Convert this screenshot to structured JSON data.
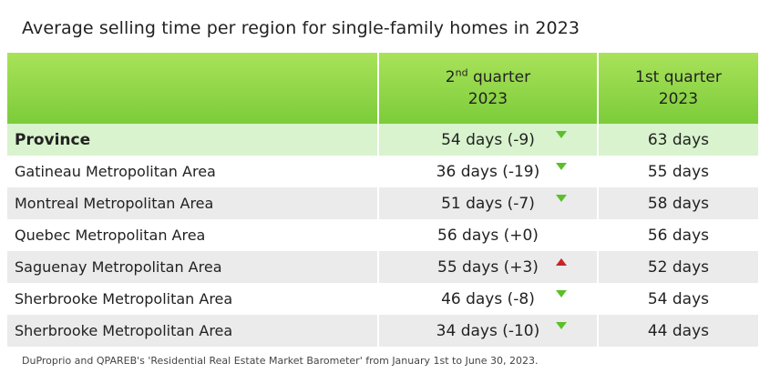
{
  "title": "Average selling time per region for single-family homes in 2023",
  "columns": {
    "q2_prefix": "2",
    "q2_sup": "nd",
    "q2_rest": " quarter",
    "q2_year": "2023",
    "q1_line1": "1st quarter",
    "q1_year": "2023"
  },
  "rows": [
    {
      "region": "Province",
      "q2": "54 days (-9)",
      "q1": "63 days",
      "trend": "down"
    },
    {
      "region": "Gatineau Metropolitan Area",
      "q2": "36 days (-19)",
      "q1": "55 days",
      "trend": "down"
    },
    {
      "region": "Montreal Metropolitan Area",
      "q2": "51 days (-7)",
      "q1": "58 days",
      "trend": "down"
    },
    {
      "region": "Quebec Metropolitan Area",
      "q2": "56 days (+0)",
      "q1": "56 days",
      "trend": "none"
    },
    {
      "region": "Saguenay Metropolitan Area",
      "q2": "55 days (+3)",
      "q1": "52 days",
      "trend": "up"
    },
    {
      "region": "Sherbrooke Metropolitan Area",
      "q2": "46 days (-8)",
      "q1": "54 days",
      "trend": "down"
    },
    {
      "region": "Sherbrooke Metropolitan Area",
      "q2": "34 days (-10)",
      "q1": "44 days",
      "trend": "down"
    }
  ],
  "source": "DuProprio and QPAREB's 'Residential Real Estate Market Barometer' from January 1st to June 30, 2023.",
  "colors": {
    "header_green": "#7ccc3a",
    "province_row": "#d8f3cd",
    "down_arrow": "#5cbf2a",
    "up_arrow": "#cc2222"
  },
  "chart_data": {
    "type": "table",
    "title": "Average selling time per region for single-family homes in 2023",
    "columns": [
      "",
      "2nd quarter 2023",
      "1st quarter 2023"
    ],
    "rows": [
      [
        "Province",
        "54 days (-9)",
        "63 days"
      ],
      [
        "Gatineau Metropolitan Area",
        "36 days (-19)",
        "55 days"
      ],
      [
        "Montreal Metropolitan Area",
        "51 days (-7)",
        "58 days"
      ],
      [
        "Quebec Metropolitan Area",
        "56 days (+0)",
        "56 days"
      ],
      [
        "Saguenay Metropolitan Area",
        "55 days (+3)",
        "52 days"
      ],
      [
        "Sherbrooke Metropolitan Area",
        "46 days (-8)",
        "54 days"
      ],
      [
        "Sherbrooke Metropolitan Area",
        "34 days (-10)",
        "44 days"
      ]
    ]
  }
}
